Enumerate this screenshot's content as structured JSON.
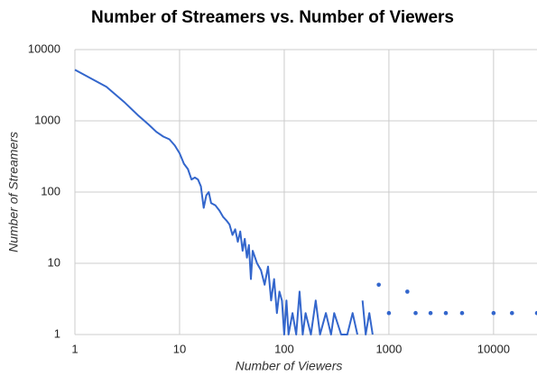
{
  "chart_data": {
    "type": "line",
    "title": "Number of Streamers vs. Number of Viewers",
    "x_label": "Number of Viewers",
    "y_label": "Number of Streamers",
    "log_x": true,
    "log_y": true,
    "grid": true,
    "xlim": [
      1,
      26000
    ],
    "ylim": [
      1,
      10000
    ],
    "xticks": [
      1,
      10,
      100,
      1000,
      10000
    ],
    "yticks": [
      1,
      10,
      100,
      1000,
      10000
    ],
    "series": [
      {
        "color": "#3366cc",
        "x": [
          1,
          2,
          3,
          4,
          5,
          6,
          7,
          8,
          9,
          10,
          11,
          12,
          13,
          14,
          15,
          16,
          17,
          18,
          19,
          20,
          22,
          24,
          26,
          28,
          30,
          32,
          34,
          36,
          38,
          40,
          42,
          44,
          46,
          48,
          50,
          55,
          60,
          65,
          70,
          75,
          80,
          85,
          90,
          95,
          100,
          105,
          110,
          120,
          130,
          140,
          150,
          160,
          180,
          200,
          220,
          250,
          280,
          300,
          350,
          400,
          450,
          500,
          530,
          560,
          600,
          650,
          700,
          750,
          800,
          900,
          1000,
          1200,
          1500,
          1700,
          1800,
          2200,
          2500,
          3000,
          3500,
          4500,
          5000,
          7000,
          10000,
          12000,
          15000,
          20000,
          26000
        ],
        "values": [
          5200,
          3000,
          1800,
          1200,
          900,
          700,
          600,
          550,
          450,
          350,
          250,
          210,
          150,
          160,
          150,
          120,
          60,
          90,
          100,
          70,
          65,
          55,
          45,
          40,
          35,
          25,
          30,
          20,
          28,
          15,
          22,
          12,
          18,
          6,
          15,
          10,
          8,
          5,
          9,
          3,
          6,
          2,
          4,
          3,
          1,
          3,
          1,
          2,
          1,
          4,
          1,
          2,
          1,
          3,
          1,
          2,
          1,
          2,
          1,
          1,
          2,
          1,
          null,
          3,
          1,
          2,
          1,
          null,
          5,
          null,
          2,
          null,
          4,
          null,
          2,
          null,
          2,
          null,
          2,
          null,
          2,
          null,
          2,
          null,
          2,
          null,
          2
        ]
      }
    ]
  }
}
